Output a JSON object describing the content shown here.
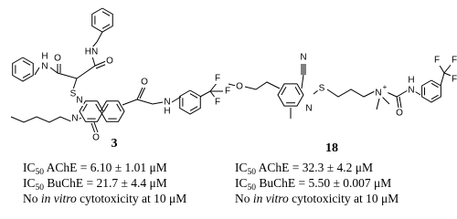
{
  "compounds": [
    {
      "id": "3",
      "atoms": [
        "HN",
        "H",
        "N",
        "O",
        "O",
        "S",
        "N",
        "N",
        "O",
        "O",
        "N",
        "H",
        "F",
        "F",
        "F"
      ],
      "activity": [
        {
          "prefix": "IC",
          "sub": "50",
          "text": " AChE = 6.10 ± 1.01 μM"
        },
        {
          "prefix": "IC",
          "sub": "50",
          "text": " BuChE = 21.7 ± 4.4 μM"
        }
      ],
      "note": {
        "pre": "No ",
        "em": "in vitro",
        "post": " cytotoxicity at 10 μM"
      }
    },
    {
      "id": "18",
      "atoms": [
        "N",
        "O",
        "S",
        "N",
        "N",
        "+",
        "H",
        "N",
        "O",
        "F",
        "F",
        "F"
      ],
      "activity": [
        {
          "prefix": "IC",
          "sub": "50",
          "text": " AChE = 32.3 ± 4.2 μM"
        },
        {
          "prefix": "IC",
          "sub": "50",
          "text": " BuChE = 5.50 ± 0.007 μM"
        }
      ],
      "note": {
        "pre": "No ",
        "em": "in vitro",
        "post": " cytotoxicity at 10 μM"
      }
    }
  ]
}
